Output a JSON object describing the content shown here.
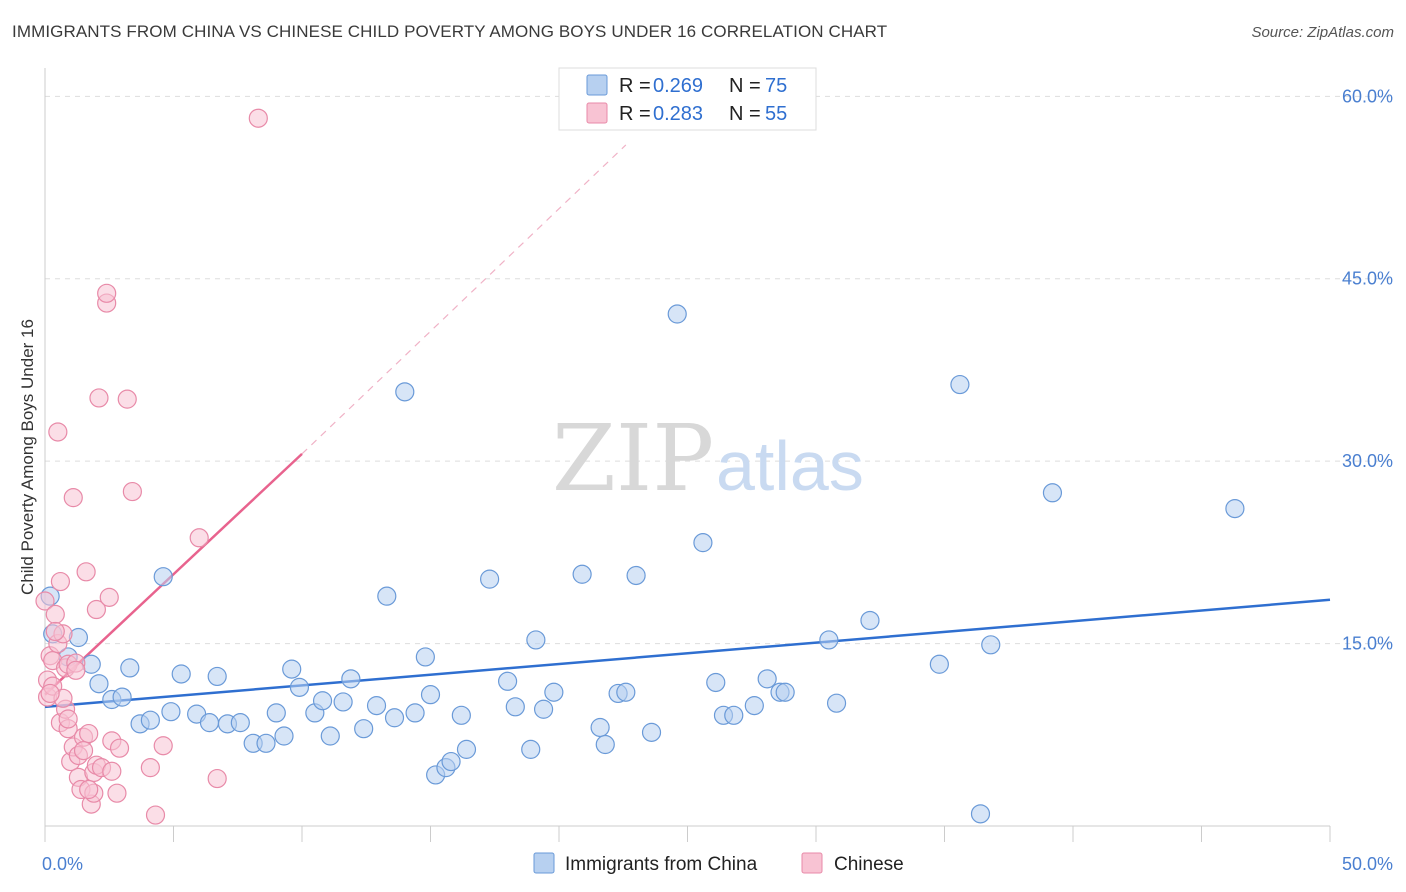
{
  "title": "IMMIGRANTS FROM CHINA VS CHINESE CHILD POVERTY AMONG BOYS UNDER 16 CORRELATION CHART",
  "source": "Source: ZipAtlas.com",
  "watermark": {
    "zip": "ZIP",
    "atlas": "atlas"
  },
  "colors": {
    "blue_fill": "#b7d0f0",
    "blue_stroke": "#6a9ad8",
    "blue_line": "#2f6fd0",
    "pink_fill": "#f8c3d3",
    "pink_stroke": "#e88aa8",
    "pink_line": "#e8638e",
    "tick_label": "#4a7fd0",
    "grid": "#dddddd"
  },
  "legend": {
    "r_label": "R =",
    "n_label": "N =",
    "items": [
      {
        "r": "0.269",
        "n": "75"
      },
      {
        "r": "0.283",
        "n": "55"
      }
    ]
  },
  "chart_data": {
    "type": "scatter",
    "xlabel": "",
    "ylabel": "Child Poverty Among Boys Under 16",
    "xlim": [
      0,
      50
    ],
    "ylim": [
      0,
      62
    ],
    "x_tick_labels": [
      "0.0%",
      "50.0%"
    ],
    "y_ticks": [
      15,
      30,
      45,
      60
    ],
    "y_tick_labels": [
      "15.0%",
      "30.0%",
      "45.0%",
      "60.0%"
    ],
    "grid": true,
    "legend_position": "top-center",
    "series": [
      {
        "name": "Immigrants from China",
        "trend": {
          "x0": 0,
          "y0": 9.8,
          "x1": 50,
          "y1": 18.6
        },
        "points": [
          [
            0.2,
            18.9
          ],
          [
            0.3,
            15.8
          ],
          [
            0.9,
            13.9
          ],
          [
            1.3,
            15.5
          ],
          [
            1.8,
            13.3
          ],
          [
            2.1,
            11.7
          ],
          [
            2.6,
            10.4
          ],
          [
            3.0,
            10.6
          ],
          [
            3.3,
            13.0
          ],
          [
            3.7,
            8.4
          ],
          [
            4.1,
            8.7
          ],
          [
            4.6,
            20.5
          ],
          [
            4.9,
            9.4
          ],
          [
            5.3,
            12.5
          ],
          [
            5.9,
            9.2
          ],
          [
            6.4,
            8.5
          ],
          [
            6.7,
            12.3
          ],
          [
            7.1,
            8.4
          ],
          [
            7.6,
            8.5
          ],
          [
            8.1,
            6.8
          ],
          [
            8.6,
            6.8
          ],
          [
            9.0,
            9.3
          ],
          [
            9.3,
            7.4
          ],
          [
            9.6,
            12.9
          ],
          [
            9.9,
            11.4
          ],
          [
            10.5,
            9.3
          ],
          [
            10.8,
            10.3
          ],
          [
            11.1,
            7.4
          ],
          [
            11.6,
            10.2
          ],
          [
            11.9,
            12.1
          ],
          [
            12.4,
            8.0
          ],
          [
            12.9,
            9.9
          ],
          [
            13.3,
            18.9
          ],
          [
            13.6,
            8.9
          ],
          [
            14.0,
            35.7
          ],
          [
            14.4,
            9.3
          ],
          [
            14.8,
            13.9
          ],
          [
            15.2,
            4.2
          ],
          [
            15.6,
            4.8
          ],
          [
            15.8,
            5.3
          ],
          [
            16.2,
            9.1
          ],
          [
            16.4,
            6.3
          ],
          [
            17.3,
            20.3
          ],
          [
            18.0,
            11.9
          ],
          [
            18.3,
            9.8
          ],
          [
            18.9,
            6.3
          ],
          [
            19.1,
            15.3
          ],
          [
            19.4,
            9.6
          ],
          [
            19.8,
            11.0
          ],
          [
            20.9,
            20.7
          ],
          [
            21.6,
            8.1
          ],
          [
            21.8,
            6.7
          ],
          [
            22.3,
            10.9
          ],
          [
            22.6,
            11.0
          ],
          [
            23.0,
            20.6
          ],
          [
            23.6,
            7.7
          ],
          [
            24.6,
            42.1
          ],
          [
            25.6,
            23.3
          ],
          [
            26.1,
            11.8
          ],
          [
            26.4,
            9.1
          ],
          [
            26.8,
            9.1
          ],
          [
            27.6,
            9.9
          ],
          [
            28.1,
            12.1
          ],
          [
            28.6,
            11.0
          ],
          [
            28.8,
            11.0
          ],
          [
            30.5,
            15.3
          ],
          [
            30.8,
            10.1
          ],
          [
            32.1,
            16.9
          ],
          [
            34.8,
            13.3
          ],
          [
            35.6,
            36.3
          ],
          [
            36.4,
            1.0
          ],
          [
            36.8,
            14.9
          ],
          [
            39.2,
            27.4
          ],
          [
            46.3,
            26.1
          ],
          [
            15.0,
            10.8
          ]
        ]
      },
      {
        "name": "Chinese",
        "trend": {
          "x0": 0,
          "y0": 10.8,
          "x1": 10,
          "y1": 30.6
        },
        "trend_ext": {
          "x0": 10,
          "y0": 30.6,
          "x1": 22.6,
          "y1": 56.0
        },
        "points": [
          [
            0.0,
            18.5
          ],
          [
            0.1,
            12.0
          ],
          [
            0.1,
            10.6
          ],
          [
            0.2,
            14.0
          ],
          [
            0.3,
            13.6
          ],
          [
            0.3,
            11.5
          ],
          [
            0.4,
            17.4
          ],
          [
            0.5,
            32.4
          ],
          [
            0.5,
            15.0
          ],
          [
            0.6,
            20.1
          ],
          [
            0.6,
            8.5
          ],
          [
            0.7,
            15.8
          ],
          [
            0.8,
            13.0
          ],
          [
            0.8,
            9.6
          ],
          [
            0.9,
            8.0
          ],
          [
            0.9,
            13.3
          ],
          [
            1.0,
            5.3
          ],
          [
            1.1,
            27.0
          ],
          [
            1.1,
            6.5
          ],
          [
            1.2,
            13.4
          ],
          [
            1.3,
            5.8
          ],
          [
            1.3,
            4.0
          ],
          [
            1.4,
            3.0
          ],
          [
            1.5,
            7.3
          ],
          [
            1.6,
            20.9
          ],
          [
            1.7,
            7.6
          ],
          [
            1.8,
            1.8
          ],
          [
            1.9,
            4.4
          ],
          [
            2.0,
            17.8
          ],
          [
            2.0,
            5.0
          ],
          [
            2.1,
            35.2
          ],
          [
            2.2,
            4.8
          ],
          [
            2.4,
            43.0
          ],
          [
            2.4,
            43.8
          ],
          [
            2.5,
            18.8
          ],
          [
            2.6,
            7.0
          ],
          [
            2.8,
            2.7
          ],
          [
            3.2,
            35.1
          ],
          [
            3.4,
            27.5
          ],
          [
            4.1,
            4.8
          ],
          [
            4.3,
            0.9
          ],
          [
            4.6,
            6.6
          ],
          [
            6.0,
            23.7
          ],
          [
            6.7,
            3.9
          ],
          [
            8.3,
            58.2
          ],
          [
            2.9,
            6.4
          ],
          [
            0.7,
            10.5
          ],
          [
            1.5,
            6.2
          ],
          [
            0.9,
            8.8
          ],
          [
            2.6,
            4.5
          ],
          [
            1.9,
            2.7
          ],
          [
            0.4,
            16.0
          ],
          [
            1.2,
            12.8
          ],
          [
            0.2,
            10.9
          ],
          [
            1.7,
            3.0
          ]
        ]
      }
    ]
  },
  "series_legend": [
    "Immigrants from China",
    "Chinese"
  ]
}
